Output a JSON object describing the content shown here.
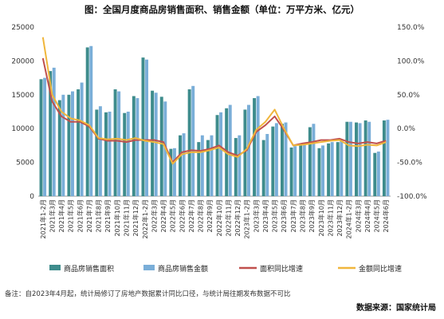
{
  "chart_data": {
    "type": "bar+line",
    "title": "图：全国月度商品房销售面积、销售金额（单位：万平方米、亿元）",
    "categories": [
      "2021年1-2月",
      "2021年3月",
      "2021年4月",
      "2021年5月",
      "2021年6月",
      "2021年7月",
      "2021年8月",
      "2021年9月",
      "2021年10月",
      "2021年11月",
      "2021年12月",
      "2022年1-2月",
      "2022年3月",
      "2022年4月",
      "2022年5月",
      "2022年6月",
      "2022年7月",
      "2022年8月",
      "2022年9月",
      "2022年10月",
      "2022年11月",
      "2022年12月",
      "2023年1-2月",
      "2023年3月",
      "2023年4月",
      "2023年5月",
      "2023年6月",
      "2023年7月",
      "2023年8月",
      "2023年9月",
      "2023年10月",
      "2023年11月",
      "2023年12月",
      "2024年1-2月",
      "2024年3月",
      "2024年4月",
      "2024年5月",
      "2024年6月"
    ],
    "y_left": {
      "ticks": [
        "0",
        "5000",
        "10000",
        "15000",
        "20000",
        "25000"
      ],
      "min": 0,
      "max": 25000
    },
    "y_right": {
      "ticks": [
        "-100.0%",
        "-50.0%",
        "0.0%",
        "50.0%",
        "100.0%",
        "150.0%"
      ],
      "min": -100,
      "max": 150
    },
    "series": [
      {
        "name": "商品房销售面积",
        "kind": "bar",
        "axis": "left",
        "color": "#3e8c8c",
        "values": [
          17300,
          18500,
          14200,
          15000,
          15800,
          22000,
          12800,
          12400,
          15800,
          12300,
          14800,
          20500,
          15600,
          14700,
          7000,
          9000,
          15800,
          8000,
          8300,
          12000,
          13000,
          8600,
          12800,
          14500,
          8300,
          10300,
          10700,
          7200,
          7600,
          10200,
          7100,
          7800,
          8000,
          11000,
          10900,
          11200,
          6400,
          11200
        ]
      },
      {
        "name": "商品房销售金额",
        "kind": "bar",
        "axis": "left",
        "color": "#7aaed8",
        "values": [
          17500,
          19000,
          15000,
          15500,
          16800,
          22200,
          13300,
          12500,
          15500,
          12500,
          14500,
          20200,
          15300,
          14000,
          7100,
          9300,
          16300,
          9000,
          9000,
          12400,
          13500,
          9000,
          13500,
          14800,
          9200,
          10800,
          10900,
          7400,
          7800,
          10700,
          7500,
          8000,
          8200,
          11000,
          10800,
          11000,
          6600,
          11300
        ]
      },
      {
        "name": "面积同比增速",
        "kind": "line",
        "axis": "right",
        "color": "#c0504d",
        "values": [
          104,
          40,
          18,
          10,
          10,
          3,
          -15,
          -18,
          -18,
          -20,
          -17,
          -17,
          -17,
          -20,
          -50,
          -35,
          -32,
          -33,
          -30,
          -25,
          -35,
          -40,
          -32,
          -5,
          5,
          18,
          -2,
          -25,
          -22,
          -20,
          -17,
          -17,
          -15,
          -20,
          -22,
          -20,
          -22,
          -18
        ]
      },
      {
        "name": "金额同比增速",
        "kind": "line",
        "axis": "right",
        "color": "#f0b63c",
        "values": [
          135,
          50,
          25,
          15,
          12,
          5,
          -14,
          -16,
          -15,
          -17,
          -14,
          -18,
          -20,
          -23,
          -52,
          -38,
          -35,
          -35,
          -32,
          -28,
          -38,
          -42,
          -30,
          -2,
          10,
          28,
          0,
          -25,
          -24,
          -22,
          -20,
          -18,
          -17,
          -25,
          -26,
          -24,
          -25,
          -20
        ]
      }
    ],
    "note": "备注：自2023年4月起，统计局修订了房地产数据累计同比口径，与统计局往期发布数据不可比",
    "source": "数据来源：国家统计局"
  }
}
